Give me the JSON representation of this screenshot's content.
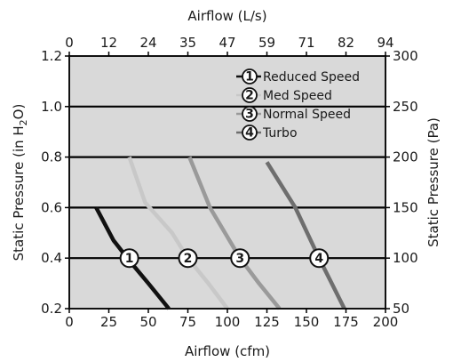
{
  "chart_data": {
    "type": "line",
    "title": "",
    "plot_background": "#d9d9d9",
    "grid": "horizontal",
    "legend_position": "top-right",
    "x_bottom": {
      "label": "Airflow (cfm)",
      "range": [
        0,
        200
      ],
      "ticks": [
        "0",
        "25",
        "50",
        "75",
        "100",
        "125",
        "150",
        "175",
        "200"
      ]
    },
    "x_top": {
      "label": "Airflow (L/s)",
      "range": [
        0,
        94
      ],
      "ticks": [
        "0",
        "12",
        "24",
        "35",
        "47",
        "59",
        "71",
        "82",
        "94"
      ]
    },
    "y_left": {
      "label_prefix": "Static Pressure (in H",
      "label_sub": "2",
      "label_suffix": "O)",
      "range": [
        0.2,
        1.2
      ],
      "ticks": [
        "0.2",
        "0.4",
        "0.6",
        "0.8",
        "1.0",
        "1.2"
      ]
    },
    "y_right": {
      "label": "Static Pressure (Pa)",
      "range": [
        50,
        300
      ],
      "ticks": [
        "50",
        "100",
        "150",
        "200",
        "250",
        "300"
      ]
    },
    "series": [
      {
        "name": "Reduced Speed",
        "marker": "1",
        "color": "#111111",
        "marker_at": [
          38,
          0.4
        ],
        "points": [
          [
            17,
            0.6
          ],
          [
            28,
            0.47
          ],
          [
            38,
            0.39
          ],
          [
            50,
            0.3
          ],
          [
            63,
            0.2
          ]
        ]
      },
      {
        "name": "Med Speed",
        "marker": "2",
        "color": "#c8c8c8",
        "marker_at": [
          75,
          0.4
        ],
        "points": [
          [
            38,
            0.8
          ],
          [
            48,
            0.62
          ],
          [
            65,
            0.5
          ],
          [
            75,
            0.4
          ],
          [
            88,
            0.3
          ],
          [
            100,
            0.2
          ]
        ]
      },
      {
        "name": "Normal Speed",
        "marker": "3",
        "color": "#9a9a9a",
        "marker_at": [
          108,
          0.4
        ],
        "points": [
          [
            76,
            0.8
          ],
          [
            89,
            0.6
          ],
          [
            108,
            0.4
          ],
          [
            120,
            0.3
          ],
          [
            133,
            0.2
          ]
        ]
      },
      {
        "name": "Turbo",
        "marker": "4",
        "color": "#6e6e6e",
        "marker_at": [
          158,
          0.4
        ],
        "points": [
          [
            125,
            0.78
          ],
          [
            143,
            0.6
          ],
          [
            158,
            0.4
          ],
          [
            166,
            0.3
          ],
          [
            174,
            0.2
          ]
        ]
      }
    ]
  }
}
